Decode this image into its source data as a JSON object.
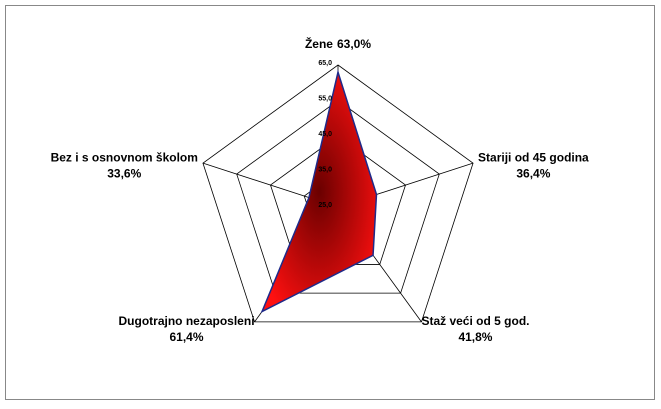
{
  "chart_data": {
    "type": "radar",
    "categories": [
      "Žene",
      "Stariji od 45 godina",
      "Staž veći od 5 god.",
      "Dugotrajno nezaposleni",
      "Bez i s osnovnom školom"
    ],
    "values": [
      63.0,
      36.4,
      41.8,
      61.4,
      33.6
    ],
    "value_labels": [
      "63,0%",
      "36,4%",
      "41,8%",
      "61,4%",
      "33,6%"
    ],
    "color": "#cc0000",
    "edge_color": "#1f2a8a",
    "ylim": [
      25,
      65
    ],
    "yticks": [
      {
        "value": 25,
        "label": "25,0"
      },
      {
        "value": 35,
        "label": "35,0"
      },
      {
        "value": 45,
        "label": "45,0"
      },
      {
        "value": 55,
        "label": "55,0"
      },
      {
        "value": 65,
        "label": "65,0"
      }
    ],
    "grid": true
  }
}
